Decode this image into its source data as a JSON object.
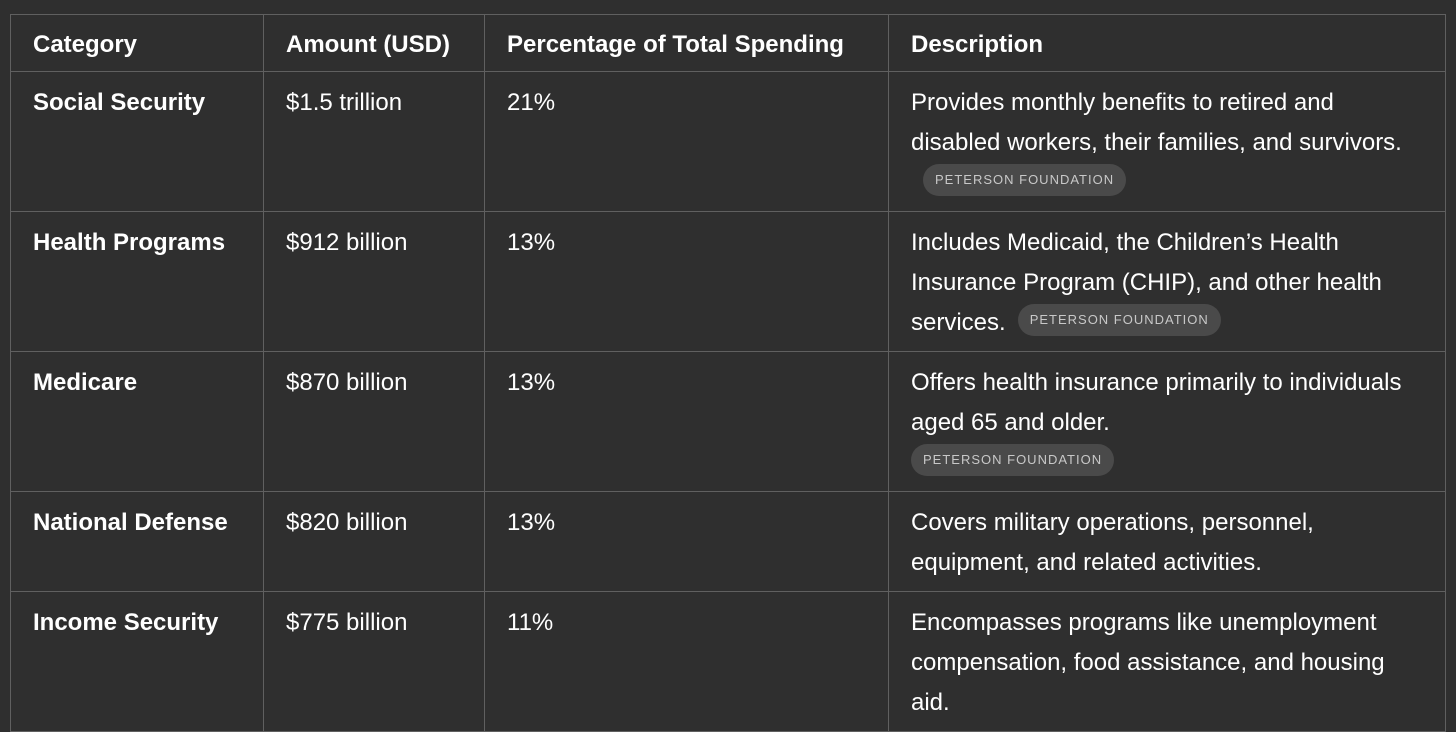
{
  "table": {
    "headers": [
      "Category",
      "Amount (USD)",
      "Percentage of Total Spending",
      "Description"
    ],
    "rows": [
      {
        "category": "Social Security",
        "amount": "$1.5 trillion",
        "percentage": "21%",
        "description": "Provides monthly benefits to retired and disabled workers, their families, and survivors.",
        "source": "PETERSON FOUNDATION"
      },
      {
        "category": "Health Programs",
        "amount": "$912 billion",
        "percentage": "13%",
        "description": "Includes Medicaid, the Children’s Health Insurance Program (CHIP), and other health services.",
        "source": "PETERSON FOUNDATION"
      },
      {
        "category": "Medicare",
        "amount": "$870 billion",
        "percentage": "13%",
        "description": "Offers health insurance primarily to individuals aged 65 and older.",
        "source": "PETERSON FOUNDATION"
      },
      {
        "category": "National Defense",
        "amount": "$820 billion",
        "percentage": "13%",
        "description": "Covers military operations, personnel, equipment, and related activities.",
        "source": ""
      },
      {
        "category": "Income Security",
        "amount": "$775 billion",
        "percentage": "11%",
        "description": "Encompasses programs like unemployment compensation, food assistance, and housing aid.",
        "source": ""
      }
    ]
  }
}
